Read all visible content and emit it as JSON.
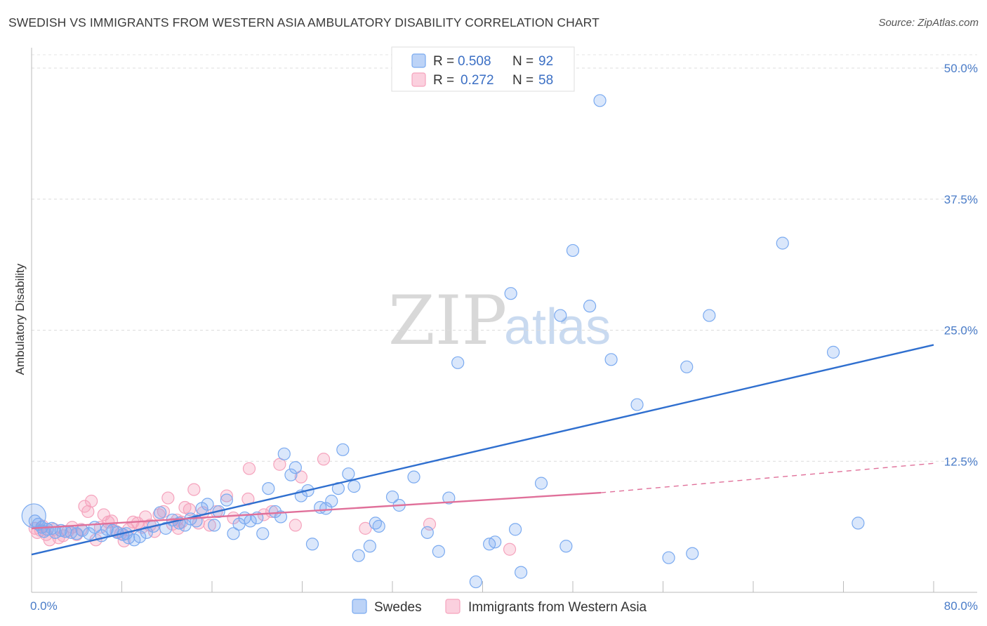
{
  "title": "SWEDISH VS IMMIGRANTS FROM WESTERN ASIA AMBULATORY DISABILITY CORRELATION CHART",
  "source": "Source: ZipAtlas.com",
  "watermark": {
    "part1": "ZIP",
    "part2": "atlas"
  },
  "legend": {
    "rows": [
      {
        "r_label": "R =",
        "r_value": "0.508",
        "n_label": "N =",
        "n_value": "92",
        "color": "#7aaaf0"
      },
      {
        "r_label": "R =",
        "r_value": "0.272",
        "n_label": "N =",
        "n_value": "58",
        "color": "#f5a3bd"
      }
    ]
  },
  "bottom_legend": [
    "Swedes",
    "Immigrants from Western Asia"
  ],
  "chart_data": {
    "type": "scatter",
    "title": "SWEDISH VS IMMIGRANTS FROM WESTERN ASIA AMBULATORY DISABILITY CORRELATION CHART",
    "ylabel": "Ambulatory Disability",
    "xlim": [
      0,
      80
    ],
    "ylim": [
      0,
      52
    ],
    "x_tick_labels": [
      "0.0%",
      "80.0%"
    ],
    "y_ticks": [
      12.5,
      25.0,
      37.5,
      50.0
    ],
    "y_tick_labels": [
      "12.5%",
      "25.0%",
      "37.5%",
      "50.0%"
    ],
    "grid": "horizontal dashed",
    "legend_position": "top-center",
    "series": [
      {
        "name": "Swedes",
        "color": "#7aaaf0",
        "line_color": "#2f6fcf",
        "trend": {
          "x": [
            0,
            80
          ],
          "y": [
            3.6,
            23.6
          ]
        },
        "points": [
          [
            0.3,
            6.8
          ],
          [
            0.6,
            6.5
          ],
          [
            0.9,
            6.2
          ],
          [
            1.1,
            5.8
          ],
          [
            1.4,
            6.0
          ],
          [
            1.8,
            6.1
          ],
          [
            2.1,
            5.7
          ],
          [
            2.6,
            5.9
          ],
          [
            3.0,
            5.8
          ],
          [
            3.5,
            5.7
          ],
          [
            4.0,
            5.6
          ],
          [
            4.5,
            5.9
          ],
          [
            5.1,
            5.6
          ],
          [
            5.6,
            6.2
          ],
          [
            6.2,
            5.4
          ],
          [
            6.7,
            6.0
          ],
          [
            7.2,
            5.9
          ],
          [
            7.6,
            5.7
          ],
          [
            8.1,
            5.5
          ],
          [
            8.6,
            5.2
          ],
          [
            9.1,
            5.0
          ],
          [
            9.6,
            5.3
          ],
          [
            10.2,
            5.7
          ],
          [
            10.8,
            6.3
          ],
          [
            11.4,
            7.6
          ],
          [
            11.9,
            6.1
          ],
          [
            12.5,
            6.9
          ],
          [
            13.1,
            6.6
          ],
          [
            13.6,
            6.4
          ],
          [
            14.1,
            7.0
          ],
          [
            14.6,
            6.8
          ],
          [
            15.1,
            8.0
          ],
          [
            15.6,
            8.4
          ],
          [
            16.2,
            6.4
          ],
          [
            16.6,
            7.7
          ],
          [
            17.3,
            8.8
          ],
          [
            17.9,
            5.6
          ],
          [
            18.4,
            6.5
          ],
          [
            18.9,
            7.1
          ],
          [
            19.4,
            6.8
          ],
          [
            20.0,
            7.1
          ],
          [
            20.5,
            5.6
          ],
          [
            21.0,
            9.9
          ],
          [
            21.6,
            7.7
          ],
          [
            22.1,
            7.2
          ],
          [
            22.4,
            13.2
          ],
          [
            23.0,
            11.2
          ],
          [
            23.4,
            11.9
          ],
          [
            23.9,
            9.2
          ],
          [
            24.5,
            9.7
          ],
          [
            24.9,
            4.6
          ],
          [
            25.6,
            8.1
          ],
          [
            26.1,
            8.0
          ],
          [
            26.6,
            8.7
          ],
          [
            27.2,
            9.9
          ],
          [
            27.6,
            13.6
          ],
          [
            28.1,
            11.3
          ],
          [
            28.6,
            10.1
          ],
          [
            29.0,
            3.5
          ],
          [
            30.0,
            4.4
          ],
          [
            30.5,
            6.6
          ],
          [
            30.8,
            6.3
          ],
          [
            32.0,
            9.1
          ],
          [
            32.6,
            8.3
          ],
          [
            33.9,
            11.0
          ],
          [
            35.1,
            5.7
          ],
          [
            36.1,
            3.9
          ],
          [
            37.0,
            9.0
          ],
          [
            37.8,
            21.9
          ],
          [
            39.4,
            1.0
          ],
          [
            40.6,
            4.6
          ],
          [
            41.1,
            4.8
          ],
          [
            42.5,
            28.5
          ],
          [
            42.9,
            6.0
          ],
          [
            43.4,
            1.9
          ],
          [
            45.2,
            10.4
          ],
          [
            46.9,
            26.4
          ],
          [
            47.4,
            4.4
          ],
          [
            48.0,
            32.6
          ],
          [
            49.5,
            27.3
          ],
          [
            50.4,
            46.9
          ],
          [
            51.4,
            22.2
          ],
          [
            53.7,
            17.9
          ],
          [
            56.5,
            3.3
          ],
          [
            58.1,
            21.5
          ],
          [
            58.6,
            3.7
          ],
          [
            60.1,
            26.4
          ],
          [
            66.6,
            33.3
          ],
          [
            71.1,
            22.9
          ],
          [
            73.3,
            6.6
          ],
          [
            0.2,
            7.3
          ],
          [
            8.4,
            5.6
          ]
        ]
      },
      {
        "name": "Immigrants from Western Asia",
        "color": "#f5a3bd",
        "line_color": "#e0709a",
        "trend": {
          "x": [
            0,
            50.5
          ],
          "y": [
            6.1,
            9.5
          ]
        },
        "trend_dashed": {
          "x": [
            50.5,
            80
          ],
          "y": [
            9.5,
            12.3
          ]
        },
        "points": [
          [
            0.3,
            6.1
          ],
          [
            0.5,
            5.7
          ],
          [
            0.8,
            5.9
          ],
          [
            1.0,
            6.3
          ],
          [
            1.3,
            5.5
          ],
          [
            1.6,
            5.0
          ],
          [
            2.0,
            6.0
          ],
          [
            2.4,
            5.2
          ],
          [
            2.8,
            5.4
          ],
          [
            3.2,
            5.8
          ],
          [
            3.6,
            6.2
          ],
          [
            4.0,
            5.5
          ],
          [
            4.4,
            6.0
          ],
          [
            4.7,
            8.2
          ],
          [
            5.0,
            7.7
          ],
          [
            5.3,
            8.7
          ],
          [
            5.7,
            5.0
          ],
          [
            6.1,
            6.2
          ],
          [
            6.4,
            7.4
          ],
          [
            6.8,
            6.7
          ],
          [
            7.1,
            6.8
          ],
          [
            7.5,
            5.8
          ],
          [
            7.9,
            5.6
          ],
          [
            8.2,
            4.9
          ],
          [
            8.6,
            6.0
          ],
          [
            9.0,
            6.7
          ],
          [
            9.4,
            6.6
          ],
          [
            9.8,
            6.2
          ],
          [
            10.1,
            7.2
          ],
          [
            10.5,
            6.4
          ],
          [
            10.9,
            5.8
          ],
          [
            11.3,
            7.4
          ],
          [
            11.7,
            7.7
          ],
          [
            12.1,
            9.0
          ],
          [
            12.5,
            6.5
          ],
          [
            12.9,
            6.9
          ],
          [
            13.3,
            6.7
          ],
          [
            13.6,
            8.1
          ],
          [
            14.0,
            7.9
          ],
          [
            14.4,
            9.8
          ],
          [
            14.8,
            6.6
          ],
          [
            15.2,
            7.6
          ],
          [
            15.8,
            6.4
          ],
          [
            16.4,
            7.7
          ],
          [
            17.3,
            9.2
          ],
          [
            17.9,
            7.1
          ],
          [
            19.2,
            8.9
          ],
          [
            19.3,
            11.8
          ],
          [
            20.6,
            7.4
          ],
          [
            21.3,
            7.7
          ],
          [
            22.0,
            12.2
          ],
          [
            23.4,
            6.4
          ],
          [
            23.9,
            11.0
          ],
          [
            25.9,
            12.7
          ],
          [
            29.6,
            6.1
          ],
          [
            35.3,
            6.5
          ],
          [
            42.4,
            4.1
          ],
          [
            13.0,
            6.1
          ]
        ]
      }
    ]
  }
}
